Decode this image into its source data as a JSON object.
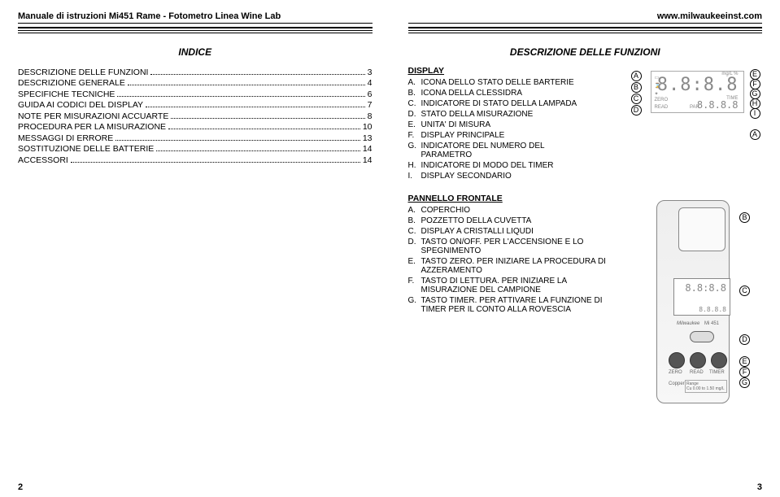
{
  "header": {
    "left": "Manuale di istruzioni Mi451 Rame - Fotometro Linea Wine Lab",
    "right": "www.milwaukeeinst.com"
  },
  "left_page": {
    "title": "INDICE",
    "toc": [
      {
        "label": "DESCRIZIONE DELLE FUNZIONI",
        "page": "3"
      },
      {
        "label": "DESCRIZIONE GENERALE",
        "page": "4"
      },
      {
        "label": "SPECIFICHE TECNICHE",
        "page": "6"
      },
      {
        "label": "GUIDA AI CODICI DEL DISPLAY",
        "page": "7"
      },
      {
        "label": "NOTE PER MISURAZIONI ACCUARTE",
        "page": "8"
      },
      {
        "label": "PROCEDURA PER LA MISURAZIONE",
        "page": "10"
      },
      {
        "label": "MESSAGGI DI ERRORE",
        "page": "13"
      },
      {
        "label": "SOSTITUZIONE DELLE BATTERIE",
        "page": "14"
      },
      {
        "label": "ACCESSORI",
        "page": "14"
      }
    ],
    "number": "2"
  },
  "right_page": {
    "title": "DESCRIZIONE DELLE FUNZIONI",
    "display": {
      "heading": "DISPLAY",
      "items": [
        {
          "k": "A.",
          "t": "ICONA DELLO STATO DELLE BARTERIE"
        },
        {
          "k": "B.",
          "t": "ICONA DELLA CLESSIDRA"
        },
        {
          "k": "C.",
          "t": "INDICATORE DI STATO DELLA LAMPADA"
        },
        {
          "k": "D.",
          "t": "STATO DELLA MISURAZIONE"
        },
        {
          "k": "E.",
          "t": "UNITA' DI MISURA"
        },
        {
          "k": "F.",
          "t": "DISPLAY PRINCIPALE"
        },
        {
          "k": "G.",
          "t": "INDICATORE DEL NUMERO DEL PARAMETRO"
        },
        {
          "k": "H.",
          "t": "INDICATORE DI MODO DEL TIMER"
        },
        {
          "k": "I.",
          "t": "DISPLAY SECONDARIO"
        }
      ],
      "lcd": {
        "big": "8.8:8.8",
        "small": "8.8.8.8",
        "unit": "mg/L %",
        "zero": "ZERO",
        "read": "READ",
        "par": "PAR.",
        "time": "TIME"
      },
      "callouts_left": [
        "A",
        "B",
        "C",
        "D"
      ],
      "callouts_right": [
        "E",
        "F",
        "G",
        "H",
        "I"
      ],
      "callout_bottom": "A"
    },
    "panel": {
      "heading": "PANNELLO FRONTALE",
      "items": [
        {
          "k": "A.",
          "t": "COPERCHIO"
        },
        {
          "k": "B.",
          "t": "POZZETTO DELLA CUVETTA"
        },
        {
          "k": "C.",
          "t": "DISPLAY A CRISTALLI LIQUDI"
        },
        {
          "k": "D.",
          "t": "TASTO ON/OFF. PER L'ACCENSIONE E LO SPEGNIMENTO"
        },
        {
          "k": "E.",
          "t": "TASTO ZERO. PER INIZIARE LA PROCEDURA DI AZZERAMENTO"
        },
        {
          "k": "F.",
          "t": "TASTO DI LETTURA. PER INIZIARE LA MISURAZIONE DEL CAMPIONE"
        },
        {
          "k": "G.",
          "t": "TASTO TIMER. PER ATTIVARE LA FUNZIONE DI TIMER PER IL CONTO ALLA ROVESCIA"
        }
      ],
      "device": {
        "brand": "Milwaukee",
        "model": "Mi 451",
        "range_label": "Range",
        "range_value": "Cu 0.00 to 1.50 mg/L",
        "material": "Copper",
        "buttons": [
          "ZERO",
          "READ",
          "TIMER"
        ]
      },
      "callouts": [
        "B",
        "C",
        "D",
        "E",
        "F",
        "G"
      ]
    },
    "number": "3"
  }
}
